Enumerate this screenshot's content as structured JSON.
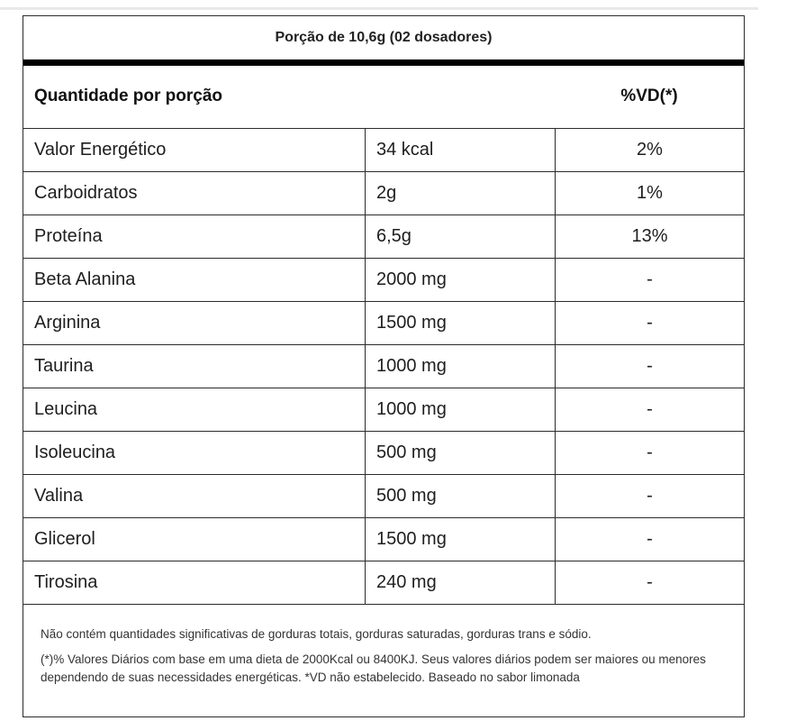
{
  "table": {
    "serving": "Porção de 10,6g (02 dosadores)",
    "header_quantity": "Quantidade por porção",
    "header_vd": "%VD(*)",
    "rows": [
      {
        "name": "Valor Energético",
        "amount": "34 kcal",
        "vd": "2%"
      },
      {
        "name": "Carboidratos",
        "amount": "2g",
        "vd": "1%"
      },
      {
        "name": "Proteína",
        "amount": "6,5g",
        "vd": "13%"
      },
      {
        "name": "Beta Alanina",
        "amount": "2000 mg",
        "vd": "-"
      },
      {
        "name": "Arginina",
        "amount": "1500 mg",
        "vd": "-"
      },
      {
        "name": "Taurina",
        "amount": "1000 mg",
        "vd": "-"
      },
      {
        "name": "Leucina",
        "amount": "1000 mg",
        "vd": "-"
      },
      {
        "name": "Isoleucina",
        "amount": "500 mg",
        "vd": "-"
      },
      {
        "name": "Valina",
        "amount": "500 mg",
        "vd": "-"
      },
      {
        "name": "Glicerol",
        "amount": "1500 mg",
        "vd": "-"
      },
      {
        "name": "Tirosina",
        "amount": "240 mg",
        "vd": "-"
      }
    ],
    "note_1": "Não contém quantidades significativas de gorduras totais, gorduras saturadas, gorduras trans e sódio.",
    "note_2": "(*)% Valores Diários com base em uma dieta de 2000Kcal ou 8400KJ. Seus valores diários podem ser maiores ou menores dependendo de suas necessidades energéticas. *VD não estabelecido. Baseado no sabor limonada"
  }
}
